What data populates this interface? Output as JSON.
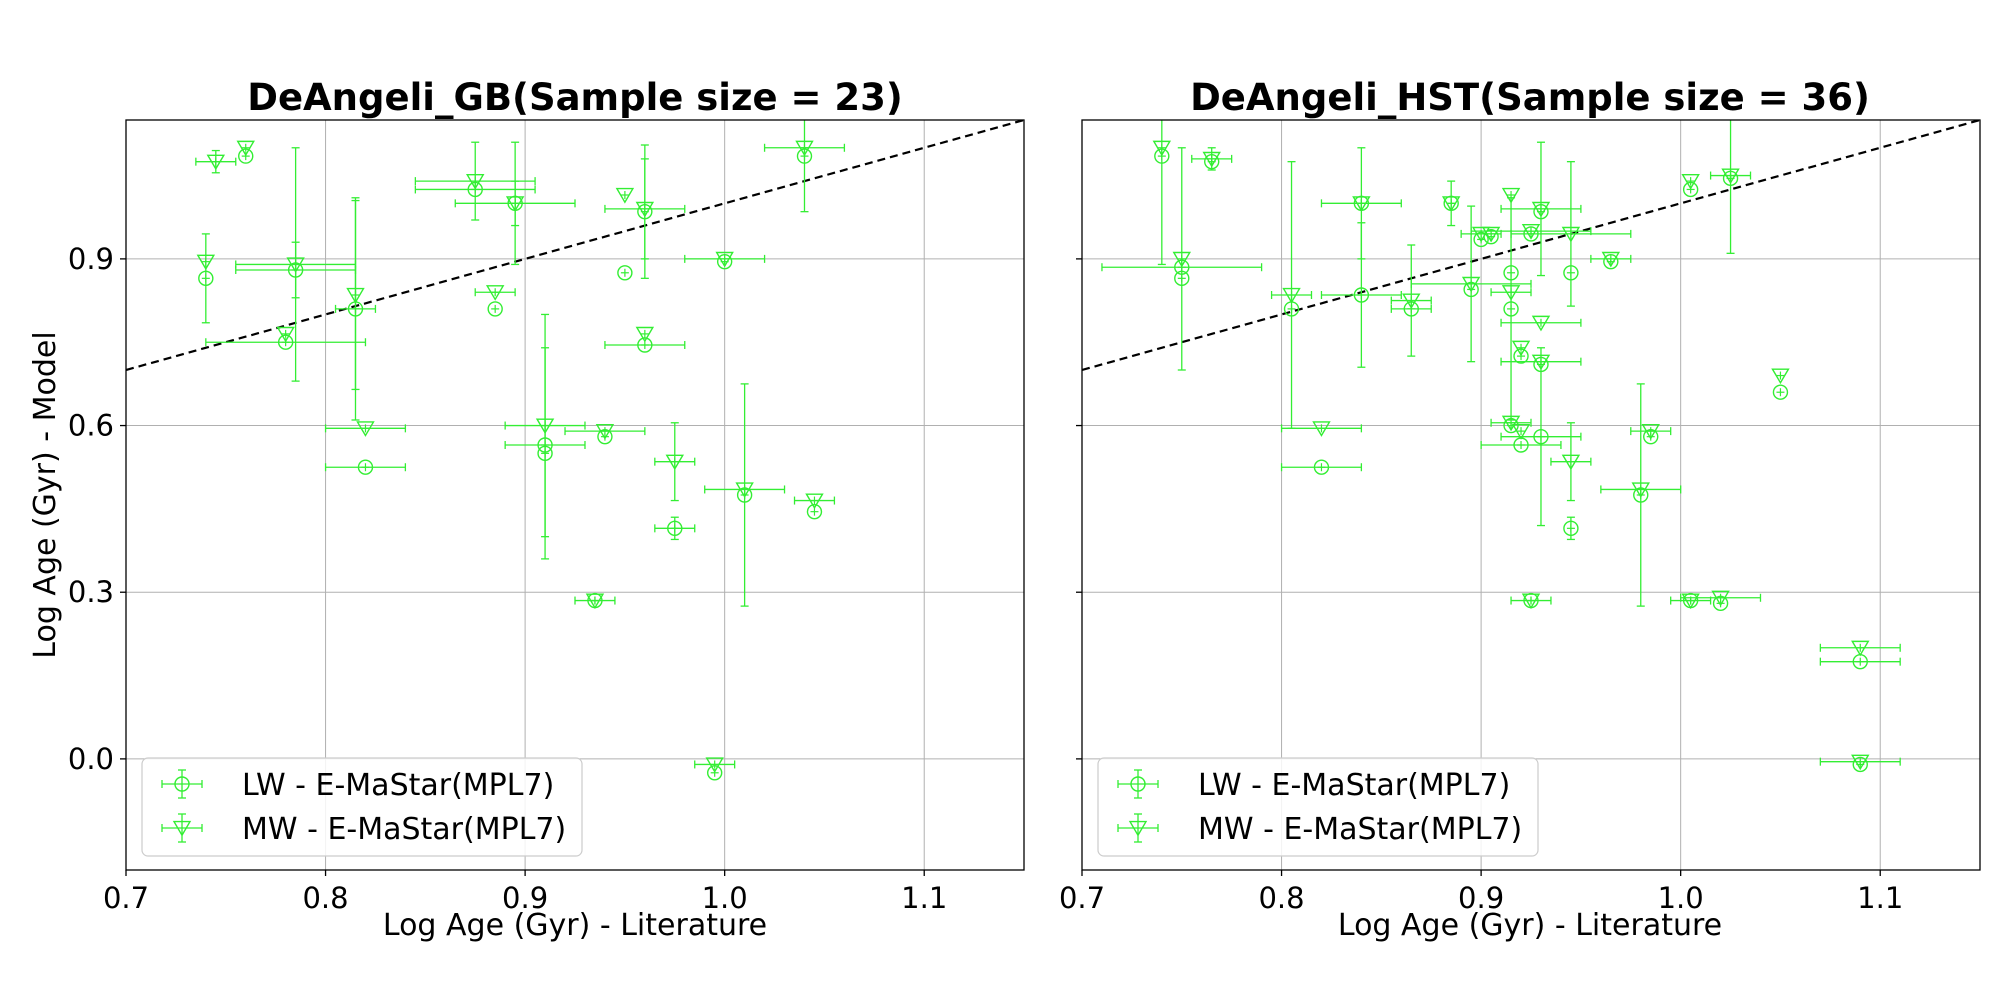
{
  "chart_data": [
    {
      "type": "scatter",
      "title": "DeAngeli_GB(Sample size = 23)",
      "xlabel": "Log Age (Gyr) - Literature",
      "ylabel": "Log Age (Gyr) - Model",
      "xlim": [
        0.7,
        1.15
      ],
      "ylim": [
        -0.2,
        1.15
      ],
      "xticks": [
        0.7,
        0.8,
        0.9,
        1.0,
        1.1
      ],
      "yticks": [
        0.0,
        0.3,
        0.6,
        0.9
      ],
      "xtick_labels": [
        "0.7",
        "0.8",
        "0.9",
        "1.0",
        "1.1"
      ],
      "ytick_labels": [
        "0.0",
        "0.3",
        "0.6",
        "0.9"
      ],
      "grid": true,
      "reference_line": "y = x (dashed)",
      "legend_position": "lower-left",
      "series": [
        {
          "name": "LW - E-MaStar(MPL7)",
          "marker": "circle",
          "color": "#33ee33",
          "points": [
            {
              "x": 0.74,
              "y": 0.865,
              "xerr": 0.0,
              "yerr": 0.08
            },
            {
              "x": 0.76,
              "y": 1.085,
              "xerr": 0.0,
              "yerr": 0.0
            },
            {
              "x": 0.78,
              "y": 0.75,
              "xerr": 0.04,
              "yerr": 0.0
            },
            {
              "x": 0.785,
              "y": 0.88,
              "xerr": 0.03,
              "yerr": 0.05
            },
            {
              "x": 0.815,
              "y": 0.81,
              "xerr": 0.01,
              "yerr": 0.2
            },
            {
              "x": 0.82,
              "y": 0.525,
              "xerr": 0.02,
              "yerr": 0.0
            },
            {
              "x": 0.875,
              "y": 1.025,
              "xerr": 0.03,
              "yerr": 0.0
            },
            {
              "x": 0.885,
              "y": 0.81,
              "xerr": 0.0,
              "yerr": 0.0
            },
            {
              "x": 0.895,
              "y": 1.0,
              "xerr": 0.0,
              "yerr": 0.04
            },
            {
              "x": 0.91,
              "y": 0.55,
              "xerr": 0.0,
              "yerr": 0.19
            },
            {
              "x": 0.91,
              "y": 0.565,
              "xerr": 0.02,
              "yerr": 0.0
            },
            {
              "x": 0.935,
              "y": 0.285,
              "xerr": 0.0,
              "yerr": 0.0
            },
            {
              "x": 0.94,
              "y": 0.58,
              "xerr": 0.0,
              "yerr": 0.0
            },
            {
              "x": 0.95,
              "y": 0.875,
              "xerr": 0.0,
              "yerr": 0.0
            },
            {
              "x": 0.96,
              "y": 0.745,
              "xerr": 0.02,
              "yerr": 0.0
            },
            {
              "x": 0.96,
              "y": 0.985,
              "xerr": 0.0,
              "yerr": 0.12
            },
            {
              "x": 0.975,
              "y": 0.415,
              "xerr": 0.01,
              "yerr": 0.02
            },
            {
              "x": 0.995,
              "y": -0.025,
              "xerr": 0.0,
              "yerr": 0.0
            },
            {
              "x": 1.0,
              "y": 0.895,
              "xerr": 0.0,
              "yerr": 0.0
            },
            {
              "x": 1.01,
              "y": 0.475,
              "xerr": 0.0,
              "yerr": 0.2
            },
            {
              "x": 1.04,
              "y": 1.085,
              "xerr": 0.0,
              "yerr": 0.1
            },
            {
              "x": 1.045,
              "y": 0.445,
              "xerr": 0.0,
              "yerr": 0.0
            }
          ]
        },
        {
          "name": "MW - E-MaStar(MPL7)",
          "marker": "triangle-down",
          "color": "#33ee33",
          "points": [
            {
              "x": 0.74,
              "y": 0.895,
              "xerr": 0.0,
              "yerr": 0.0
            },
            {
              "x": 0.745,
              "y": 1.075,
              "xerr": 0.01,
              "yerr": 0.02
            },
            {
              "x": 0.76,
              "y": 1.1,
              "xerr": 0.0,
              "yerr": 0.0
            },
            {
              "x": 0.78,
              "y": 0.765,
              "xerr": 0.0,
              "yerr": 0.0
            },
            {
              "x": 0.785,
              "y": 0.89,
              "xerr": 0.03,
              "yerr": 0.21
            },
            {
              "x": 0.815,
              "y": 0.835,
              "xerr": 0.0,
              "yerr": 0.17
            },
            {
              "x": 0.82,
              "y": 0.595,
              "xerr": 0.02,
              "yerr": 0.0
            },
            {
              "x": 0.875,
              "y": 1.04,
              "xerr": 0.03,
              "yerr": 0.07
            },
            {
              "x": 0.885,
              "y": 0.84,
              "xerr": 0.01,
              "yerr": 0.0
            },
            {
              "x": 0.895,
              "y": 1.0,
              "xerr": 0.03,
              "yerr": 0.11
            },
            {
              "x": 0.91,
              "y": 0.6,
              "xerr": 0.02,
              "yerr": 0.2
            },
            {
              "x": 0.935,
              "y": 0.285,
              "xerr": 0.01,
              "yerr": 0.0
            },
            {
              "x": 0.94,
              "y": 0.59,
              "xerr": 0.02,
              "yerr": 0.0
            },
            {
              "x": 0.95,
              "y": 1.015,
              "xerr": 0.0,
              "yerr": 0.0
            },
            {
              "x": 0.96,
              "y": 0.765,
              "xerr": 0.0,
              "yerr": 0.0
            },
            {
              "x": 0.96,
              "y": 0.99,
              "xerr": 0.02,
              "yerr": 0.09
            },
            {
              "x": 0.975,
              "y": 0.535,
              "xerr": 0.01,
              "yerr": 0.07
            },
            {
              "x": 0.995,
              "y": -0.01,
              "xerr": 0.01,
              "yerr": 0.0
            },
            {
              "x": 1.0,
              "y": 0.9,
              "xerr": 0.02,
              "yerr": 0.0
            },
            {
              "x": 1.01,
              "y": 0.485,
              "xerr": 0.02,
              "yerr": 0.0
            },
            {
              "x": 1.04,
              "y": 1.1,
              "xerr": 0.02,
              "yerr": 0.0
            },
            {
              "x": 1.045,
              "y": 0.465,
              "xerr": 0.01,
              "yerr": 0.0
            }
          ]
        }
      ]
    },
    {
      "type": "scatter",
      "title": "DeAngeli_HST(Sample size = 36)",
      "xlabel": "Log Age (Gyr) - Literature",
      "ylabel": "",
      "xlim": [
        0.7,
        1.15
      ],
      "ylim": [
        -0.2,
        1.15
      ],
      "xticks": [
        0.7,
        0.8,
        0.9,
        1.0,
        1.1
      ],
      "yticks": [
        0.0,
        0.3,
        0.6,
        0.9
      ],
      "xtick_labels": [
        "0.7",
        "0.8",
        "0.9",
        "1.0",
        "1.1"
      ],
      "ytick_labels": [],
      "grid": true,
      "reference_line": "y = x (dashed)",
      "legend_position": "lower-left",
      "series": [
        {
          "name": "LW - E-MaStar(MPL7)",
          "marker": "circle",
          "color": "#33ee33",
          "points": [
            {
              "x": 0.74,
              "y": 1.085,
              "xerr": 0.0,
              "yerr": 0.0
            },
            {
              "x": 0.75,
              "y": 0.865,
              "xerr": 0.0,
              "yerr": 0.0
            },
            {
              "x": 0.75,
              "y": 0.885,
              "xerr": 0.04,
              "yerr": 0.0
            },
            {
              "x": 0.765,
              "y": 1.075,
              "xerr": 0.0,
              "yerr": 0.0
            },
            {
              "x": 0.805,
              "y": 0.81,
              "xerr": 0.0,
              "yerr": 0.0
            },
            {
              "x": 0.82,
              "y": 0.525,
              "xerr": 0.02,
              "yerr": 0.0
            },
            {
              "x": 0.84,
              "y": 0.835,
              "xerr": 0.02,
              "yerr": 0.13
            },
            {
              "x": 0.84,
              "y": 1.0,
              "xerr": 0.0,
              "yerr": 0.0
            },
            {
              "x": 0.865,
              "y": 0.81,
              "xerr": 0.01,
              "yerr": 0.0
            },
            {
              "x": 0.885,
              "y": 1.0,
              "xerr": 0.0,
              "yerr": 0.04
            },
            {
              "x": 0.895,
              "y": 0.845,
              "xerr": 0.0,
              "yerr": 0.0
            },
            {
              "x": 0.9,
              "y": 0.935,
              "xerr": 0.0,
              "yerr": 0.0
            },
            {
              "x": 0.905,
              "y": 0.94,
              "xerr": 0.0,
              "yerr": 0.0
            },
            {
              "x": 0.915,
              "y": 0.875,
              "xerr": 0.0,
              "yerr": 0.0
            },
            {
              "x": 0.915,
              "y": 0.81,
              "xerr": 0.0,
              "yerr": 0.2
            },
            {
              "x": 0.915,
              "y": 0.6,
              "xerr": 0.0,
              "yerr": 0.0
            },
            {
              "x": 0.92,
              "y": 0.565,
              "xerr": 0.02,
              "yerr": 0.0
            },
            {
              "x": 0.92,
              "y": 0.725,
              "xerr": 0.0,
              "yerr": 0.0
            },
            {
              "x": 0.925,
              "y": 0.285,
              "xerr": 0.0,
              "yerr": 0.0
            },
            {
              "x": 0.925,
              "y": 0.945,
              "xerr": 0.0,
              "yerr": 0.0
            },
            {
              "x": 0.93,
              "y": 0.58,
              "xerr": 0.02,
              "yerr": 0.16
            },
            {
              "x": 0.93,
              "y": 0.71,
              "xerr": 0.0,
              "yerr": 0.0
            },
            {
              "x": 0.93,
              "y": 0.985,
              "xerr": 0.0,
              "yerr": 0.0
            },
            {
              "x": 0.945,
              "y": 0.875,
              "xerr": 0.0,
              "yerr": 0.0
            },
            {
              "x": 0.945,
              "y": 0.415,
              "xerr": 0.0,
              "yerr": 0.02
            },
            {
              "x": 0.965,
              "y": 0.895,
              "xerr": 0.0,
              "yerr": 0.0
            },
            {
              "x": 0.98,
              "y": 0.475,
              "xerr": 0.0,
              "yerr": 0.2
            },
            {
              "x": 0.985,
              "y": 0.58,
              "xerr": 0.0,
              "yerr": 0.0
            },
            {
              "x": 1.005,
              "y": 0.285,
              "xerr": 0.0,
              "yerr": 0.0
            },
            {
              "x": 1.005,
              "y": 1.025,
              "xerr": 0.0,
              "yerr": 0.0
            },
            {
              "x": 1.02,
              "y": 0.28,
              "xerr": 0.0,
              "yerr": 0.0
            },
            {
              "x": 1.025,
              "y": 1.045,
              "xerr": 0.0,
              "yerr": 0.0
            },
            {
              "x": 1.05,
              "y": 0.66,
              "xerr": 0.0,
              "yerr": 0.0
            },
            {
              "x": 1.09,
              "y": 0.175,
              "xerr": 0.02,
              "yerr": 0.0
            },
            {
              "x": 1.09,
              "y": -0.01,
              "xerr": 0.0,
              "yerr": 0.0
            }
          ]
        },
        {
          "name": "MW - E-MaStar(MPL7)",
          "marker": "triangle-down",
          "color": "#33ee33",
          "points": [
            {
              "x": 0.74,
              "y": 1.1,
              "xerr": 0.0,
              "yerr": 0.21
            },
            {
              "x": 0.75,
              "y": 0.9,
              "xerr": 0.0,
              "yerr": 0.2
            },
            {
              "x": 0.765,
              "y": 1.08,
              "xerr": 0.01,
              "yerr": 0.02
            },
            {
              "x": 0.805,
              "y": 0.835,
              "xerr": 0.01,
              "yerr": 0.24
            },
            {
              "x": 0.82,
              "y": 0.595,
              "xerr": 0.02,
              "yerr": 0.0
            },
            {
              "x": 0.84,
              "y": 1.0,
              "xerr": 0.02,
              "yerr": 0.1
            },
            {
              "x": 0.865,
              "y": 0.825,
              "xerr": 0.01,
              "yerr": 0.1
            },
            {
              "x": 0.885,
              "y": 1.0,
              "xerr": 0.0,
              "yerr": 0.0
            },
            {
              "x": 0.895,
              "y": 0.855,
              "xerr": 0.03,
              "yerr": 0.14
            },
            {
              "x": 0.9,
              "y": 0.945,
              "xerr": 0.01,
              "yerr": 0.0
            },
            {
              "x": 0.905,
              "y": 0.945,
              "xerr": 0.0,
              "yerr": 0.0
            },
            {
              "x": 0.915,
              "y": 1.015,
              "xerr": 0.0,
              "yerr": 0.0
            },
            {
              "x": 0.915,
              "y": 0.84,
              "xerr": 0.01,
              "yerr": 0.0
            },
            {
              "x": 0.915,
              "y": 0.605,
              "xerr": 0.01,
              "yerr": 0.0
            },
            {
              "x": 0.92,
              "y": 0.59,
              "xerr": 0.0,
              "yerr": 0.0
            },
            {
              "x": 0.92,
              "y": 0.74,
              "xerr": 0.0,
              "yerr": 0.0
            },
            {
              "x": 0.925,
              "y": 0.285,
              "xerr": 0.01,
              "yerr": 0.0
            },
            {
              "x": 0.925,
              "y": 0.95,
              "xerr": 0.03,
              "yerr": 0.0
            },
            {
              "x": 0.93,
              "y": 0.715,
              "xerr": 0.02,
              "yerr": 0.0
            },
            {
              "x": 0.93,
              "y": 0.785,
              "xerr": 0.02,
              "yerr": 0.0
            },
            {
              "x": 0.93,
              "y": 0.99,
              "xerr": 0.02,
              "yerr": 0.12
            },
            {
              "x": 0.945,
              "y": 0.535,
              "xerr": 0.01,
              "yerr": 0.07
            },
            {
              "x": 0.945,
              "y": 0.945,
              "xerr": 0.03,
              "yerr": 0.13
            },
            {
              "x": 0.965,
              "y": 0.9,
              "xerr": 0.01,
              "yerr": 0.0
            },
            {
              "x": 0.98,
              "y": 0.485,
              "xerr": 0.02,
              "yerr": 0.0
            },
            {
              "x": 0.985,
              "y": 0.59,
              "xerr": 0.01,
              "yerr": 0.0
            },
            {
              "x": 1.005,
              "y": 0.285,
              "xerr": 0.01,
              "yerr": 0.0
            },
            {
              "x": 1.005,
              "y": 1.04,
              "xerr": 0.0,
              "yerr": 0.0
            },
            {
              "x": 1.02,
              "y": 0.29,
              "xerr": 0.02,
              "yerr": 0.0
            },
            {
              "x": 1.025,
              "y": 1.05,
              "xerr": 0.01,
              "yerr": 0.14
            },
            {
              "x": 1.05,
              "y": 0.69,
              "xerr": 0.0,
              "yerr": 0.0
            },
            {
              "x": 1.09,
              "y": 0.2,
              "xerr": 0.02,
              "yerr": 0.0
            },
            {
              "x": 1.09,
              "y": -0.005,
              "xerr": 0.02,
              "yerr": 0.0
            }
          ]
        }
      ]
    }
  ]
}
